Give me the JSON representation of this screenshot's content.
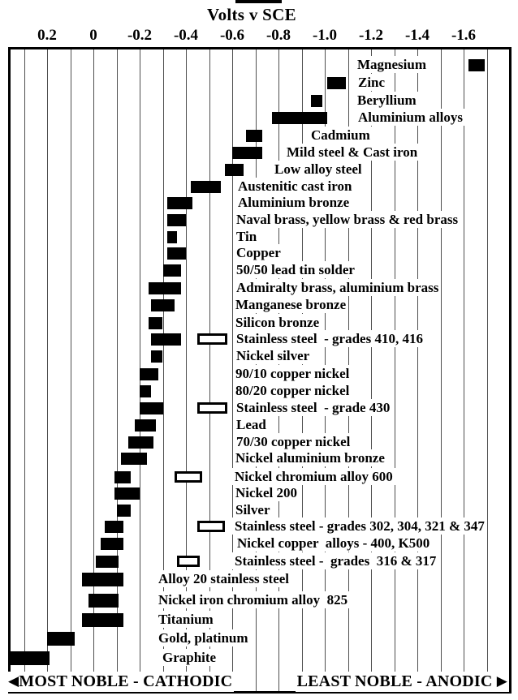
{
  "title": "Volts v SCE",
  "axis": {
    "ticks": [
      {
        "label": "0.2",
        "value": 0.2
      },
      {
        "label": "0",
        "value": 0.0
      },
      {
        "label": "-0.2",
        "value": -0.2
      },
      {
        "label": "-0.4",
        "value": -0.4
      },
      {
        "label": "-0.6",
        "value": -0.6
      },
      {
        "label": "-0.8",
        "value": -0.8
      },
      {
        "label": "-1.0",
        "value": -1.0
      },
      {
        "label": "-1.2",
        "value": -1.2
      },
      {
        "label": "-1.4",
        "value": -1.4
      },
      {
        "label": "-1.6",
        "value": -1.6
      }
    ],
    "grid_step": 0.1,
    "grid_from": 0.3,
    "grid_to": -1.7
  },
  "footer": {
    "left_arrow": "◀",
    "left_text": "MOST NOBLE - CATHODIC",
    "right_text": "LEAST NOBLE - ANODIC",
    "right_arrow": "▶"
  },
  "colors": {
    "bar": "#000000",
    "hollow_bar_fill": "#ffffff",
    "grid": "#4f4f4f",
    "background": "#ffffff",
    "text": "#000000"
  },
  "chart_data": {
    "type": "bar",
    "subtype": "horizontal-range",
    "title": "Volts v SCE",
    "xlabel": "Volts v SCE",
    "x_axis_ticks": [
      0.2,
      0,
      -0.2,
      -0.4,
      -0.6,
      -0.8,
      -1.0,
      -1.2,
      -1.4,
      -1.6
    ],
    "x_range_displayed": [
      0.37,
      -1.8
    ],
    "grid": true,
    "bar_style_note": "solid black range bars; some rows also have a hollow (white, black-outlined) range bar",
    "series": [
      {
        "label": "Magnesium",
        "range": [
          -1.62,
          -1.69
        ]
      },
      {
        "label": "Zinc",
        "range": [
          -1.01,
          -1.09
        ]
      },
      {
        "label": "Beryllium",
        "range": [
          -0.94,
          -0.99
        ]
      },
      {
        "label": "Aluminium alloys",
        "range": [
          -0.77,
          -1.01
        ]
      },
      {
        "label": "Cadmium",
        "range": [
          -0.66,
          -0.73
        ]
      },
      {
        "label": "Mild steel & Cast iron",
        "range": [
          -0.6,
          -0.73
        ]
      },
      {
        "label": "Low alloy steel",
        "range": [
          -0.57,
          -0.65
        ]
      },
      {
        "label": "Austenitic cast iron",
        "range": [
          -0.42,
          -0.55
        ]
      },
      {
        "label": "Aluminium bronze",
        "range": [
          -0.32,
          -0.43
        ]
      },
      {
        "label": "Naval brass, yellow brass & red brass",
        "range": [
          -0.32,
          -0.4
        ]
      },
      {
        "label": "Tin",
        "range": [
          -0.32,
          -0.36
        ]
      },
      {
        "label": "Copper",
        "range": [
          -0.32,
          -0.4
        ]
      },
      {
        "label": "50/50 lead tin solder",
        "range": [
          -0.3,
          -0.38
        ]
      },
      {
        "label": "Admiralty brass, aluminium brass",
        "range": [
          -0.24,
          -0.38
        ]
      },
      {
        "label": "Manganese bronze",
        "range": [
          -0.25,
          -0.35
        ]
      },
      {
        "label": "Silicon bronze",
        "range": [
          -0.24,
          -0.3
        ]
      },
      {
        "label": "Stainless steel  - grades 410, 416",
        "range": [
          -0.25,
          -0.38
        ],
        "active_range": [
          -0.45,
          -0.58
        ],
        "active_style": "hollow"
      },
      {
        "label": "Nickel silver",
        "range": [
          -0.25,
          -0.3
        ]
      },
      {
        "label": "90/10 copper nickel",
        "range": [
          -0.2,
          -0.28
        ]
      },
      {
        "label": "80/20 copper nickel",
        "range": [
          -0.2,
          -0.25
        ]
      },
      {
        "label": "Stainless steel  - grade 430",
        "range": [
          -0.2,
          -0.3
        ],
        "active_range": [
          -0.45,
          -0.58
        ],
        "active_style": "hollow"
      },
      {
        "label": "Lead",
        "range": [
          -0.18,
          -0.27
        ]
      },
      {
        "label": "70/30 copper nickel",
        "range": [
          -0.15,
          -0.26
        ]
      },
      {
        "label": "Nickel aluminium bronze",
        "range": [
          -0.12,
          -0.23
        ]
      },
      {
        "label": "Nickel chromium alloy 600",
        "range": [
          -0.09,
          -0.16
        ],
        "active_range": [
          -0.35,
          -0.47
        ],
        "active_style": "hollow"
      },
      {
        "label": "Nickel 200",
        "range": [
          -0.09,
          -0.2
        ]
      },
      {
        "label": "Silver",
        "range": [
          -0.1,
          -0.16
        ]
      },
      {
        "label": "Stainless steel - grades 302, 304, 321 & 347",
        "range": [
          -0.05,
          -0.13
        ],
        "active_range": [
          -0.45,
          -0.57
        ],
        "active_style": "hollow"
      },
      {
        "label": "Nickel copper  alloys - 400, K500",
        "range": [
          -0.03,
          -0.13
        ]
      },
      {
        "label": "Stainless steel -  grades  316 & 317",
        "range": [
          -0.01,
          -0.11
        ],
        "active_range": [
          -0.36,
          -0.46
        ],
        "active_style": "hollow"
      },
      {
        "label": "Alloy 20 stainless steel",
        "range": [
          0.05,
          -0.13
        ]
      },
      {
        "label": "Nickel iron chromium alloy  825",
        "range": [
          0.02,
          -0.11
        ]
      },
      {
        "label": "Titanium",
        "range": [
          0.05,
          -0.13
        ]
      },
      {
        "label": "Gold, platinum",
        "range": [
          0.2,
          0.08
        ]
      },
      {
        "label": "Graphite",
        "range": [
          0.36,
          0.19
        ]
      }
    ]
  }
}
